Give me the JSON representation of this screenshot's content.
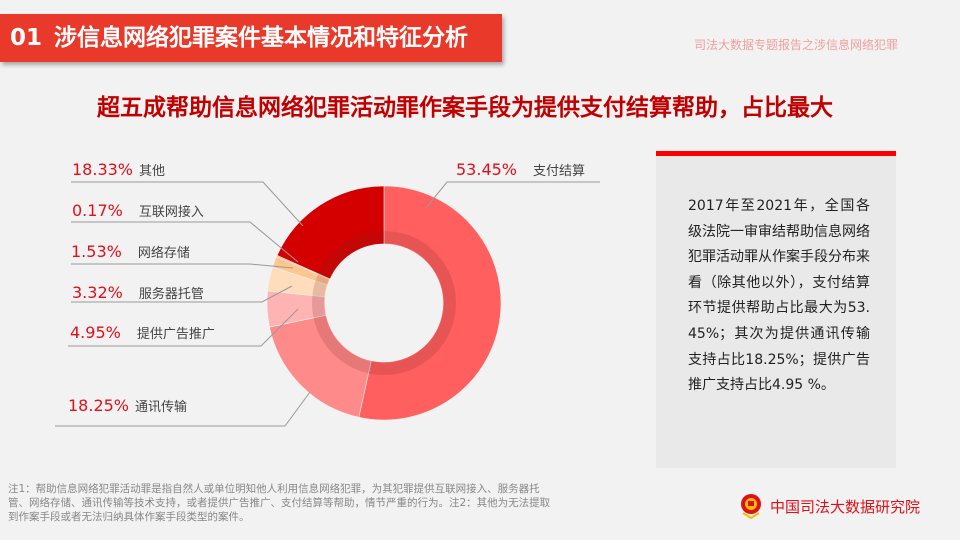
{
  "header": {
    "section_number": "01",
    "section_title": "涉信息网络犯罪案件基本情况和特征分析",
    "series_title": "司法大数据专题报告之涉信息网络犯罪"
  },
  "headline": "超五成帮助信息网络犯罪活动罪作案手段为提供支付结算帮助，占比最大",
  "chart_data": {
    "type": "pie",
    "donut": true,
    "categories": [
      "支付结算",
      "通讯传输",
      "提供广告推广",
      "服务器托管",
      "网络存储",
      "互联网接入",
      "其他"
    ],
    "values": [
      53.45,
      18.25,
      4.95,
      3.32,
      1.53,
      0.17,
      18.33
    ],
    "labels": [
      "53.45%",
      "18.25%",
      "4.95%",
      "3.32%",
      "1.53%",
      "0.17%",
      "18.33%"
    ],
    "colors": [
      "#ff5f5f",
      "#ff8a8a",
      "#ffb3b3",
      "#ffdcbc",
      "#ffc68e",
      "#f0a070",
      "#d40000"
    ]
  },
  "panel": {
    "text": "2017年至2021年，全国各级法院一审审结帮助信息网络犯罪活动罪从作案手段分布来看（除其他以外），支付结算环节提供帮助占比最大为53.45%；其次为提供通讯传输支持占比18.25%；提供广告推广支持占比4.95 %。",
    "accent": "#ff0000"
  },
  "note": "注1：帮助信息网络犯罪活动罪是指自然人或单位明知他人利用信息网络犯罪，为其犯罪提供互联网接入、服务器托管、网络存储、通讯传输等技术支持，或者提供广告推广、支付结算等帮助，情节严重的行为。注2：其他为无法提取到作案手段或者无法归纳具体作案手段类型的案件。",
  "footer": {
    "org": "中国司法大数据研究院",
    "logo_icon": "national-emblem-icon"
  }
}
